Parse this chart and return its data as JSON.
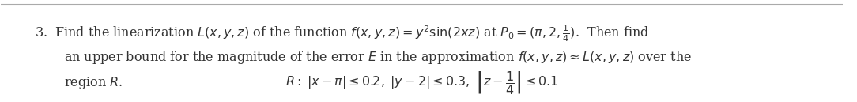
{
  "background_color": "#ffffff",
  "text_color": "#333333",
  "line1": "3.  Find the linearization $L(x, y, z)$ of the function $f(x, y, z) = y^2 \\sin(2xz)$ at $P_0 = (\\pi, 2, \\frac{1}{4})$.  Then find",
  "line2": "an upper bound for the magnitude of the error $E$ in the approximation $f(x, y, z) \\approx L(x, y, z)$ over the",
  "line3": "region $R$.",
  "line4": "$R:\\; |x - \\pi| \\leq 0.2, \\; |y - 2| \\leq 0.3, \\; \\left|z - \\dfrac{1}{4}\\right| \\leq 0.1$",
  "figwidth": 10.84,
  "figheight": 1.29,
  "fontsize": 11.5
}
